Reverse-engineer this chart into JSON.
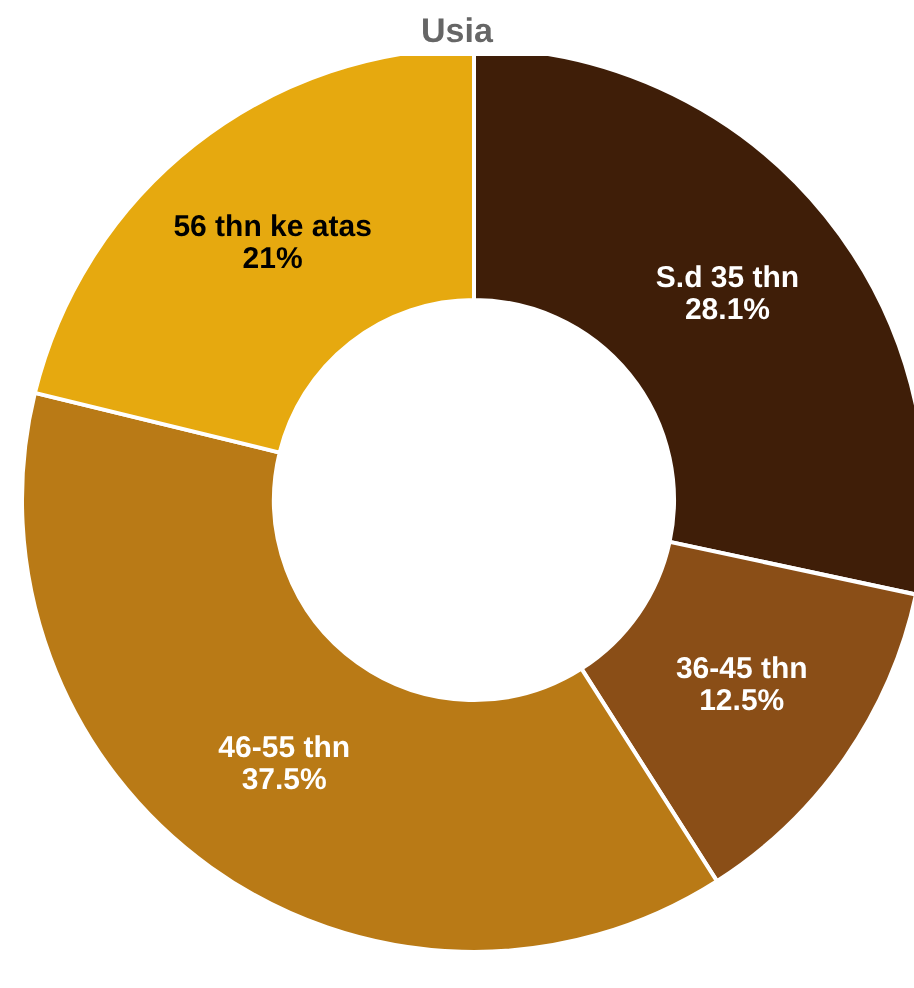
{
  "chart_data": {
    "type": "donut",
    "title": "Usia",
    "categories": [
      "S.d 35 thn",
      "36-45 thn",
      "46-55 thn",
      "56 thn ke atas"
    ],
    "values": [
      28.1,
      12.5,
      37.5,
      21
    ],
    "value_labels": [
      "28.1%",
      "12.5%",
      "37.5%",
      "21%"
    ],
    "colors": [
      "#3f1e08",
      "#8a4e17",
      "#b97a16",
      "#e6a90f"
    ],
    "legend": false
  }
}
